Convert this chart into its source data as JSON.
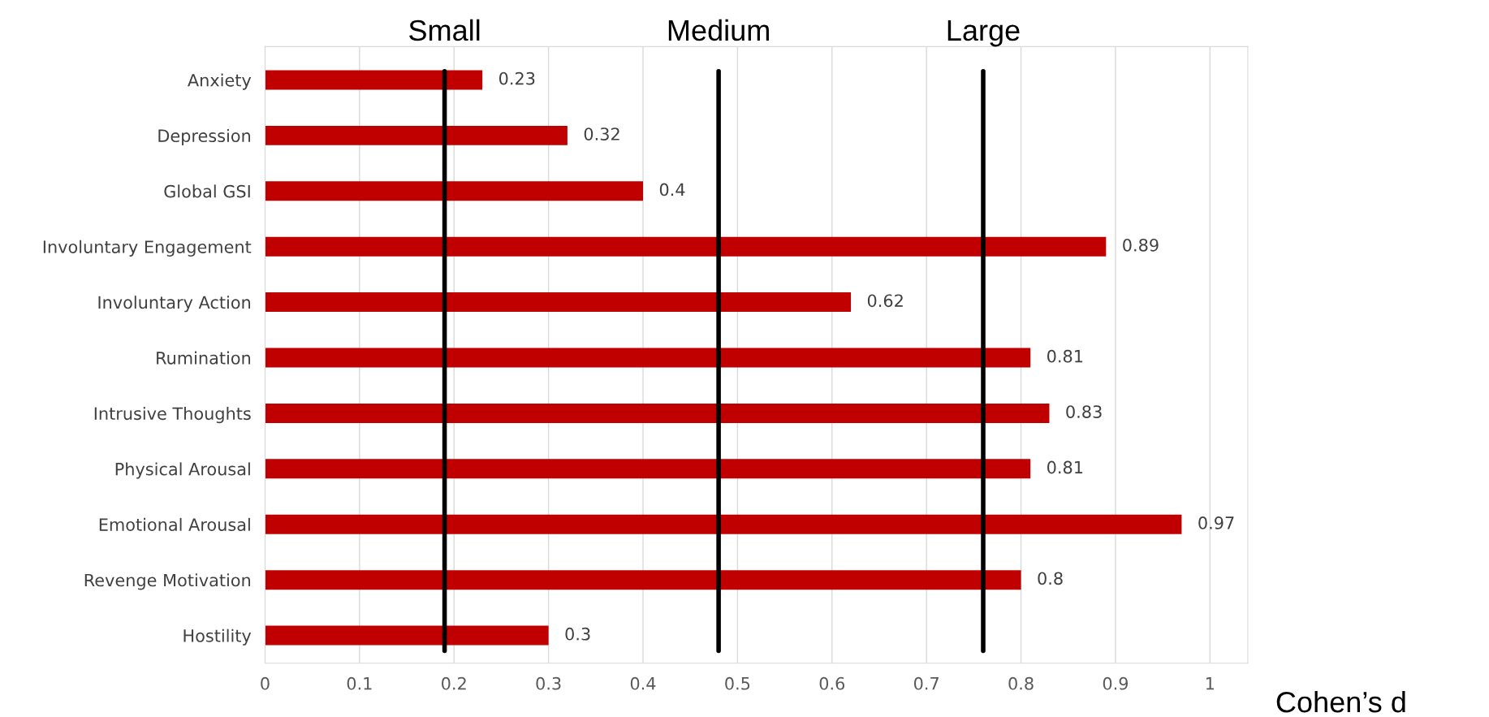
{
  "chart_data": {
    "type": "bar",
    "orientation": "horizontal",
    "categories": [
      "Anxiety",
      "Depression",
      "Global GSI",
      "Involuntary Engagement",
      "Involuntary Action",
      "Rumination",
      "Intrusive Thoughts",
      "Physical Arousal",
      "Emotional Arousal",
      "Revenge Motivation",
      "Hostility"
    ],
    "values": [
      0.23,
      0.32,
      0.4,
      0.89,
      0.62,
      0.81,
      0.83,
      0.81,
      0.97,
      0.8,
      0.3
    ],
    "color": "#c00000",
    "data_labels": true,
    "xlabel": "Cohen’s d",
    "xlim": [
      0,
      1.04
    ],
    "xticks": [
      0,
      0.1,
      0.2,
      0.3,
      0.4,
      0.5,
      0.6,
      0.7,
      0.8,
      0.9,
      1
    ],
    "grid": "x",
    "ref_lines": [
      {
        "axis": "x",
        "value": 0.19,
        "label": "Small",
        "color": "#000000"
      },
      {
        "axis": "x",
        "value": 0.48,
        "label": "Medium",
        "color": "#000000"
      },
      {
        "axis": "x",
        "value": 0.76,
        "label": "Large",
        "color": "#000000"
      }
    ]
  }
}
